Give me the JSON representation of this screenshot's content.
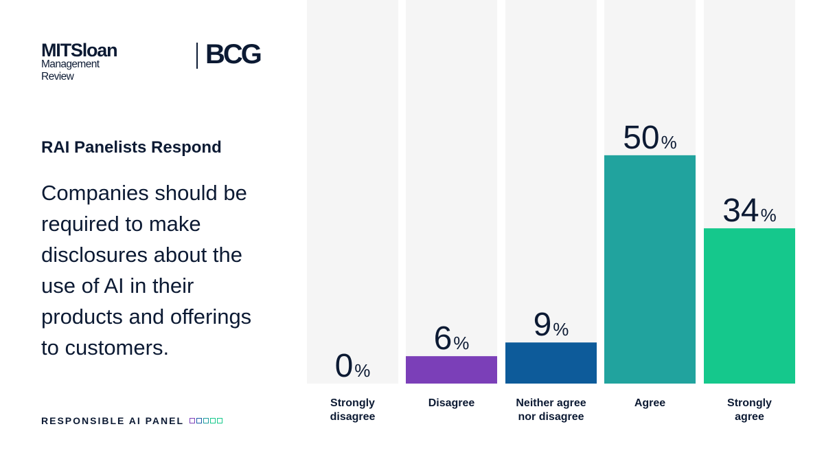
{
  "logo": {
    "brand_main": "MITSloan",
    "brand_sub": "Management Review",
    "partner": "BCG"
  },
  "subtitle": "RAI Panelists Respond",
  "question": "Companies should be required to make disclosures about the use of AI in their products and offerings to customers.",
  "footer": {
    "label": "RESPONSIBLE AI PANEL",
    "square_colors": [
      "#7b3fb8",
      "#1b5ca6",
      "#1f9ea0",
      "#16c98b",
      "#16c98b"
    ]
  },
  "chart_data": {
    "type": "bar",
    "title": "RAI Panelists Respond",
    "categories": [
      [
        "Strongly",
        "disagree"
      ],
      [
        "Disagree"
      ],
      [
        "Neither agree",
        "nor disagree"
      ],
      [
        "Agree"
      ],
      [
        "Strongly",
        "agree"
      ]
    ],
    "values": [
      0,
      6,
      9,
      50,
      34
    ],
    "value_suffix": "%",
    "colors": [
      "#7b3fb8",
      "#7b3fb8",
      "#0d5b9a",
      "#21a39e",
      "#15c88c"
    ],
    "background_color": "#f5f5f5",
    "ylim": [
      0,
      84
    ]
  }
}
